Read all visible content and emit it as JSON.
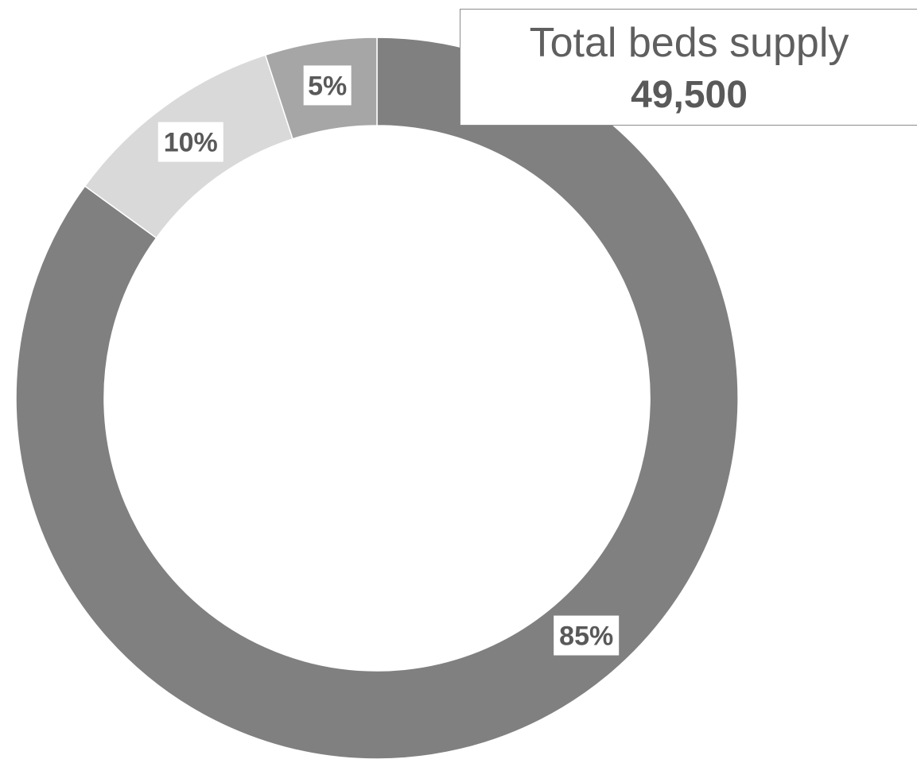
{
  "chart_data": {
    "type": "pie",
    "variant": "donut",
    "categories": [
      "",
      "",
      ""
    ],
    "values": [
      85,
      10,
      5
    ],
    "labels": [
      "85%",
      "10%",
      "5%"
    ],
    "colors": [
      "#808080",
      "#d9d9d9",
      "#a6a6a6"
    ],
    "start": "top, clockwise",
    "legend": "none"
  },
  "summary": {
    "label": "Total beds supply",
    "value": "49,500"
  }
}
